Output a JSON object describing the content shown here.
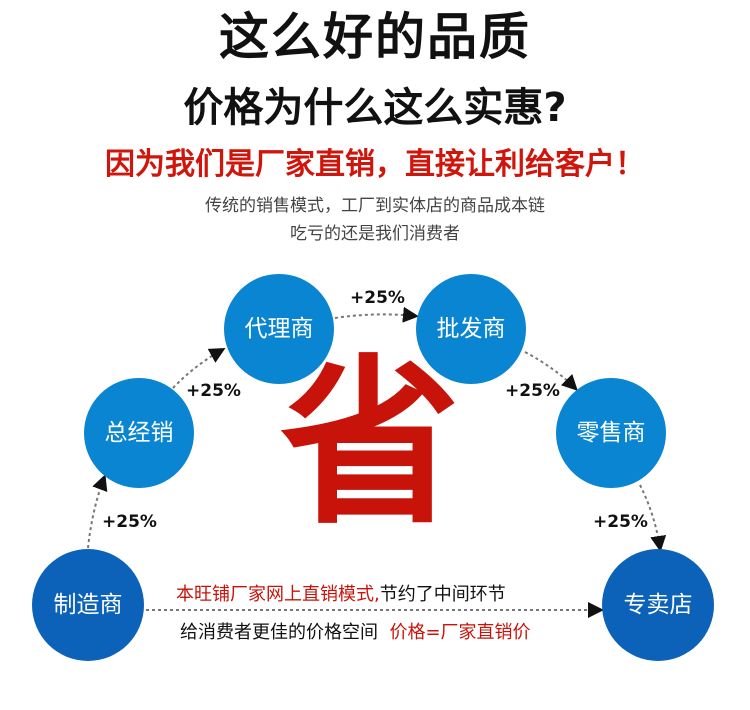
{
  "headline": "这么好的品质",
  "subheadline": "价格为什么这么实惠?",
  "tagline": "因为我们是厂家直销，直接让利给客户！",
  "description_line1": "传统的销售模式，工厂到实体店的商品成本链",
  "description_line2": "吃亏的还是我们消费者",
  "chain": [
    "制造商",
    "总经销",
    "代理商",
    "批发商",
    "零售商",
    "专卖店"
  ],
  "markup": "+25%",
  "big_char": "省",
  "bottom_line1_red": "本旺铺厂家网上直销模式,",
  "bottom_line1_black": "节约了中间环节",
  "bottom_line2_black": "给消费者更佳的价格空间",
  "bottom_line2_red": "价格=厂家直销价",
  "colors": {
    "red": "#c8130a",
    "blue": "#0a85d2",
    "dark_blue": "#0b62b8"
  }
}
